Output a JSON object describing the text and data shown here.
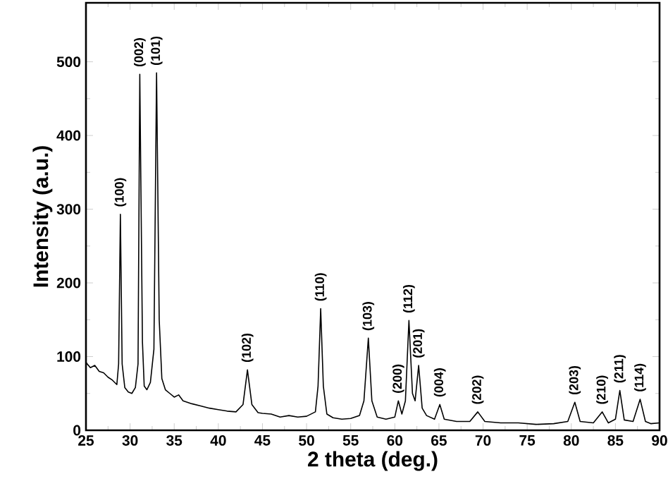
{
  "chart_data": {
    "type": "line",
    "xlabel": "2 theta (deg.)",
    "ylabel": "Intensity (a.u.)",
    "xlim": [
      25,
      90
    ],
    "ylim": [
      0,
      580
    ],
    "xticks": [
      25,
      30,
      35,
      40,
      45,
      50,
      55,
      60,
      65,
      70,
      75,
      80,
      85,
      90
    ],
    "yticks": [
      0,
      100,
      200,
      300,
      400,
      500
    ],
    "series": [
      {
        "color": "#000000",
        "x": [
          25,
          25.5,
          26,
          26.5,
          27,
          27.5,
          28,
          28.5,
          28.7,
          28.9,
          29.1,
          29.4,
          29.8,
          30.2,
          30.6,
          30.9,
          31.1,
          31.4,
          31.6,
          31.9,
          32.3,
          32.7,
          33.0,
          33.3,
          33.6,
          34,
          34.5,
          35,
          35.5,
          36,
          37,
          38,
          39,
          40,
          41,
          42,
          42.8,
          43.3,
          43.8,
          44.5,
          45,
          46,
          47,
          48,
          49,
          50,
          51,
          51.3,
          51.6,
          51.9,
          52.3,
          53,
          54,
          55,
          56,
          56.5,
          57.0,
          57.4,
          58,
          59,
          60,
          60.4,
          60.8,
          61.2,
          61.6,
          62,
          62.3,
          62.7,
          63.1,
          63.6,
          64.5,
          65.1,
          65.6,
          67,
          68.5,
          69.4,
          70.2,
          72,
          74,
          76,
          78,
          79.6,
          80.4,
          81,
          82.5,
          83.5,
          84.2,
          85,
          85.5,
          86,
          87,
          87.8,
          88.4,
          89,
          90
        ],
        "values": [
          92,
          85,
          88,
          80,
          78,
          72,
          68,
          62,
          90,
          293,
          90,
          58,
          52,
          50,
          58,
          90,
          483,
          120,
          60,
          55,
          65,
          110,
          485,
          150,
          70,
          55,
          50,
          45,
          48,
          40,
          36,
          33,
          30,
          28,
          26,
          25,
          35,
          82,
          35,
          24,
          23,
          22,
          18,
          20,
          18,
          19,
          25,
          60,
          165,
          60,
          22,
          17,
          15,
          16,
          20,
          40,
          125,
          40,
          18,
          15,
          18,
          40,
          22,
          40,
          149,
          50,
          40,
          88,
          30,
          20,
          15,
          35,
          15,
          12,
          12,
          25,
          12,
          10,
          10,
          8,
          9,
          12,
          38,
          12,
          10,
          25,
          10,
          15,
          54,
          14,
          12,
          42,
          12,
          9,
          10
        ]
      }
    ],
    "annotations": [
      {
        "text": "(100)",
        "x": 28.9,
        "y": 293
      },
      {
        "text": "(002)",
        "x": 31.1,
        "y": 483
      },
      {
        "text": "(101)",
        "x": 33.0,
        "y": 485
      },
      {
        "text": "(102)",
        "x": 43.3,
        "y": 82
      },
      {
        "text": "(110)",
        "x": 51.6,
        "y": 165
      },
      {
        "text": "(103)",
        "x": 57.0,
        "y": 125
      },
      {
        "text": "(200)",
        "x": 60.4,
        "y": 40
      },
      {
        "text": "(112)",
        "x": 61.6,
        "y": 149
      },
      {
        "text": "(201)",
        "x": 62.7,
        "y": 88
      },
      {
        "text": "(004)",
        "x": 65.1,
        "y": 35
      },
      {
        "text": "(202)",
        "x": 69.4,
        "y": 25
      },
      {
        "text": "(203)",
        "x": 80.4,
        "y": 38
      },
      {
        "text": "(210)",
        "x": 83.5,
        "y": 25
      },
      {
        "text": "(211)",
        "x": 85.5,
        "y": 54
      },
      {
        "text": "(114)",
        "x": 87.8,
        "y": 42
      }
    ]
  }
}
